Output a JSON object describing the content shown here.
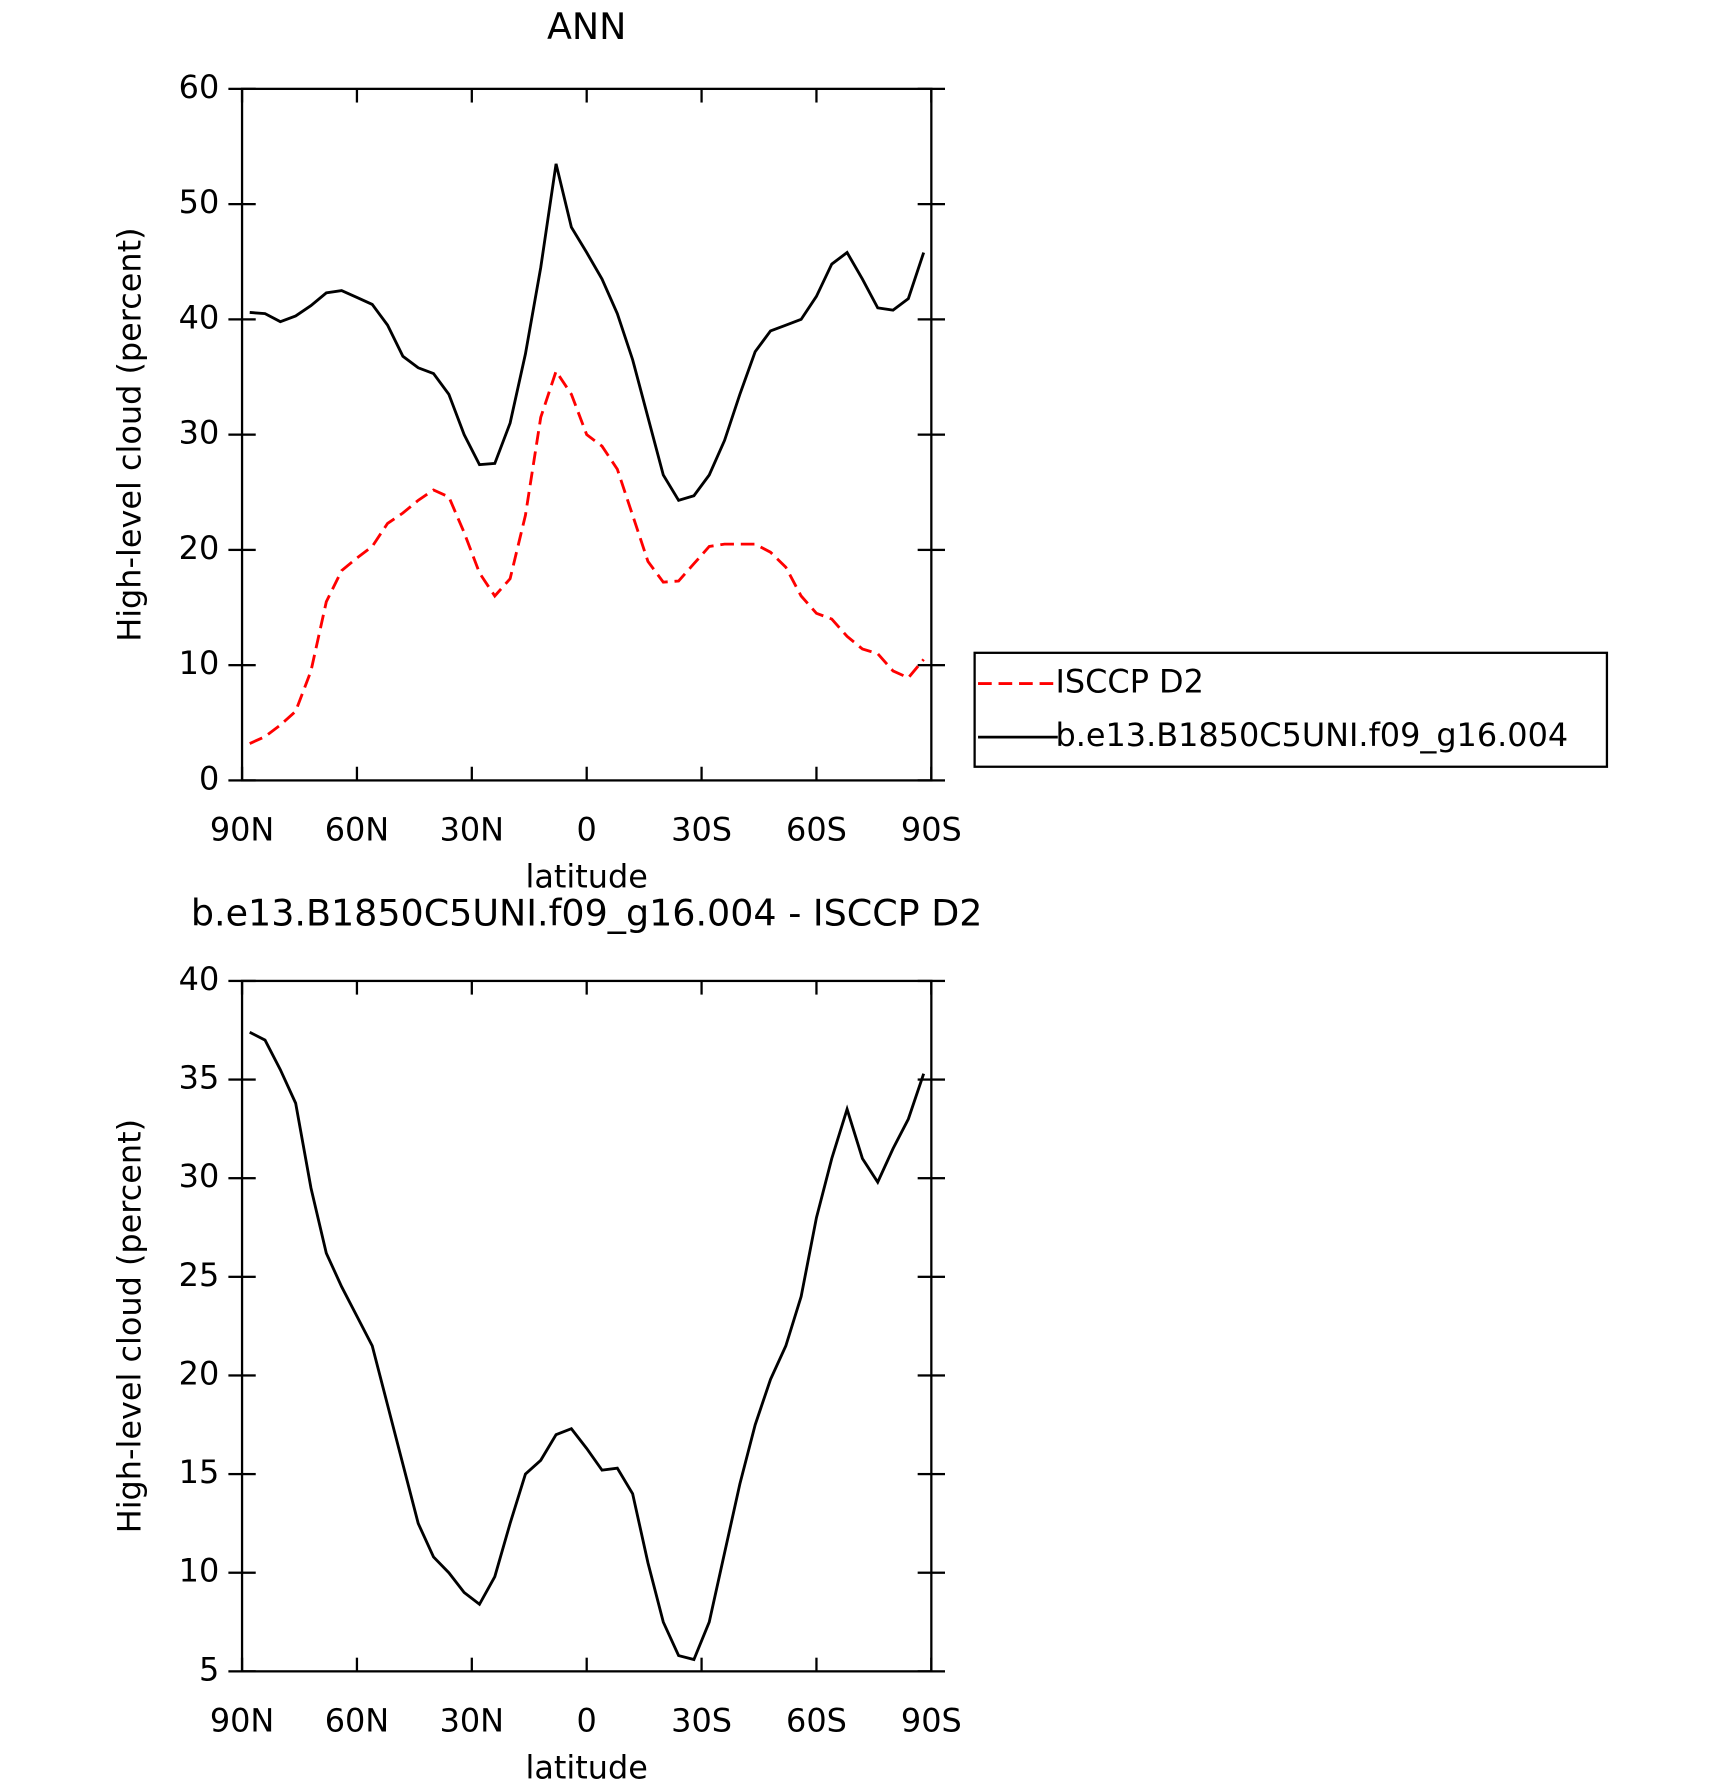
{
  "chart_data": [
    {
      "type": "line",
      "title": "ANN",
      "x_label": "latitude",
      "y_label": "High-level cloud (percent)",
      "x": [
        88,
        84,
        80,
        76,
        72,
        68,
        64,
        60,
        56,
        52,
        48,
        44,
        40,
        36,
        32,
        28,
        24,
        20,
        16,
        12,
        8,
        4,
        0,
        -4,
        -8,
        -12,
        -16,
        -20,
        -24,
        -28,
        -32,
        -36,
        -40,
        -44,
        -48,
        -52,
        -56,
        -60,
        -64,
        -68,
        -72,
        -76,
        -80,
        -84,
        -88
      ],
      "series": [
        {
          "name": "ISCCP D2",
          "color": "#ff0000",
          "dash": true,
          "values": [
            3.2,
            3.8,
            4.8,
            6.0,
            9.5,
            15.5,
            18.2,
            19.3,
            20.3,
            22.3,
            23.2,
            24.3,
            25.2,
            24.6,
            21.5,
            18.0,
            16.0,
            17.5,
            23.0,
            31.5,
            35.5,
            33.5,
            30.0,
            29.0,
            27.0,
            23.0,
            19.0,
            17.2,
            17.3,
            18.8,
            20.3,
            20.5,
            20.5,
            20.5,
            19.8,
            18.5,
            16.0,
            14.5,
            14.0,
            12.5,
            11.4,
            11.0,
            9.5,
            8.9,
            10.5
          ]
        },
        {
          "name": "b.e13.B1850C5UNI.f09_g16.004",
          "color": "#000000",
          "dash": false,
          "values": [
            40.6,
            40.5,
            39.8,
            40.3,
            41.2,
            42.3,
            42.5,
            41.9,
            41.3,
            39.5,
            36.8,
            35.8,
            35.3,
            33.5,
            30.0,
            27.4,
            27.5,
            31.0,
            37.0,
            44.5,
            53.5,
            48.0,
            45.8,
            43.5,
            40.5,
            36.5,
            31.5,
            26.5,
            24.3,
            24.7,
            26.5,
            29.5,
            33.5,
            37.2,
            39.0,
            39.5,
            40.0,
            42.0,
            44.8,
            45.8,
            43.5,
            41.0,
            40.8,
            41.8,
            45.8
          ]
        }
      ],
      "xlim": [
        90,
        -90
      ],
      "xticks": [
        {
          "value": 90,
          "label": "90N"
        },
        {
          "value": 60,
          "label": "60N"
        },
        {
          "value": 30,
          "label": "30N"
        },
        0,
        {
          "value": -30,
          "label": "30S"
        },
        {
          "value": -60,
          "label": "60S"
        },
        {
          "value": -90,
          "label": "90S"
        }
      ],
      "ylim": [
        0,
        60
      ],
      "yticks": [
        0,
        10,
        20,
        30,
        40,
        50,
        60
      ],
      "legend": "right"
    },
    {
      "type": "line",
      "title": "b.e13.B1850C5UNI.f09_g16.004 - ISCCP D2",
      "x_label": "latitude",
      "y_label": "High-level cloud (percent)",
      "x": [
        88,
        84,
        80,
        76,
        72,
        68,
        64,
        60,
        56,
        52,
        48,
        44,
        40,
        36,
        32,
        28,
        24,
        20,
        16,
        12,
        8,
        4,
        0,
        -4,
        -8,
        -12,
        -16,
        -20,
        -24,
        -28,
        -32,
        -36,
        -40,
        -44,
        -48,
        -52,
        -56,
        -60,
        -64,
        -68,
        -72,
        -76,
        -80,
        -84,
        -88
      ],
      "series": [
        {
          "color": "#000000",
          "dash": false,
          "values": [
            37.4,
            37.0,
            35.5,
            33.8,
            29.5,
            26.2,
            24.5,
            23.0,
            21.5,
            18.5,
            15.5,
            12.5,
            10.8,
            10.0,
            9.0,
            8.4,
            9.8,
            12.5,
            15.0,
            15.7,
            17.0,
            17.3,
            16.3,
            15.2,
            15.3,
            14.0,
            10.5,
            7.5,
            5.8,
            5.6,
            7.5,
            11.0,
            14.5,
            17.5,
            19.8,
            21.5,
            24.0,
            28.0,
            31.0,
            33.5,
            31.0,
            29.8,
            31.5,
            33.0,
            35.3
          ]
        }
      ],
      "xlim": [
        90,
        -90
      ],
      "xticks": [
        {
          "value": 90,
          "label": "90N"
        },
        {
          "value": 60,
          "label": "60N"
        },
        {
          "value": 30,
          "label": "30N"
        },
        0,
        {
          "value": -30,
          "label": "30S"
        },
        {
          "value": -60,
          "label": "60S"
        },
        {
          "value": -90,
          "label": "90S"
        }
      ],
      "ylim": [
        5,
        40
      ],
      "yticks": [
        5,
        10,
        15,
        20,
        25,
        30,
        35,
        40
      ]
    }
  ]
}
